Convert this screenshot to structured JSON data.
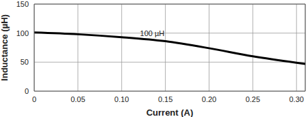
{
  "chart_data": {
    "type": "line",
    "x_label": "Current (A)",
    "y_label": "Inductance (µH)",
    "x": [
      0,
      0.05,
      0.1,
      0.15,
      0.2,
      0.25,
      0.3,
      0.31
    ],
    "values": [
      101,
      98,
      93,
      86,
      74,
      60,
      49,
      47
    ],
    "color": "#000000",
    "xlim": [
      0,
      0.31
    ],
    "xticks": [
      0,
      0.05,
      {
        "value": 0.1,
        "label": "0.10"
      },
      0.15,
      {
        "value": 0.2,
        "label": "0.20"
      },
      0.25,
      {
        "value": 0.3,
        "label": "0.30"
      }
    ],
    "ylim": [
      0,
      150
    ],
    "yticks": [
      0,
      50,
      100,
      150
    ],
    "grid": true,
    "annotations": [
      {
        "text": "100 µH",
        "x": 0.135,
        "y": 100
      }
    ]
  }
}
